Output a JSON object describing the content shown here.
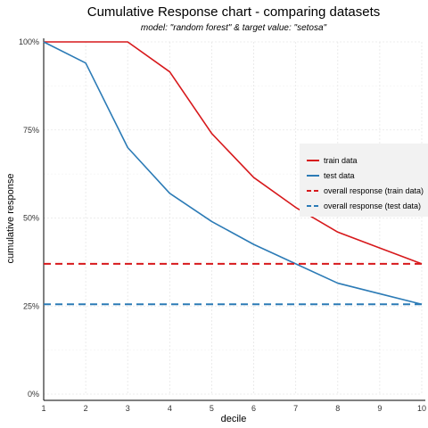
{
  "chart_data": {
    "type": "line",
    "title": "Cumulative Response chart - comparing datasets",
    "subtitle": "model: \"random forest\"  &  target value: \"setosa\"",
    "xlabel": "decile",
    "ylabel": "cumulative response",
    "xlim": [
      1,
      10
    ],
    "ylim": [
      0,
      1
    ],
    "x": [
      1,
      2,
      3,
      4,
      5,
      6,
      7,
      8,
      9,
      10
    ],
    "x_ticks": [
      "1",
      "2",
      "3",
      "4",
      "5",
      "6",
      "7",
      "8",
      "9",
      "10"
    ],
    "y_ticks": [
      {
        "value": 0,
        "label": "0%"
      },
      {
        "value": 0.25,
        "label": "25%"
      },
      {
        "value": 0.5,
        "label": "50%"
      },
      {
        "value": 0.75,
        "label": "75%"
      },
      {
        "value": 1,
        "label": "100%"
      }
    ],
    "grid": true,
    "legend_position": "right",
    "series": [
      {
        "name": "train data",
        "style": "solid",
        "color": "#d7191c",
        "values": [
          1.0,
          1.0,
          1.0,
          0.915,
          0.74,
          0.615,
          0.53,
          0.46,
          0.415,
          0.37
        ]
      },
      {
        "name": "test data",
        "style": "solid",
        "color": "#2c7bb6",
        "values": [
          1.0,
          0.94,
          0.7,
          0.57,
          0.49,
          0.425,
          0.37,
          0.315,
          0.285,
          0.255
        ]
      },
      {
        "name": "overall response (train data)",
        "style": "dashed",
        "color": "#d7191c",
        "values": [
          0.37,
          0.37,
          0.37,
          0.37,
          0.37,
          0.37,
          0.37,
          0.37,
          0.37,
          0.37
        ]
      },
      {
        "name": "overall response (test data)",
        "style": "dashed",
        "color": "#2c7bb6",
        "values": [
          0.255,
          0.255,
          0.255,
          0.255,
          0.255,
          0.255,
          0.255,
          0.255,
          0.255,
          0.255
        ]
      }
    ]
  }
}
